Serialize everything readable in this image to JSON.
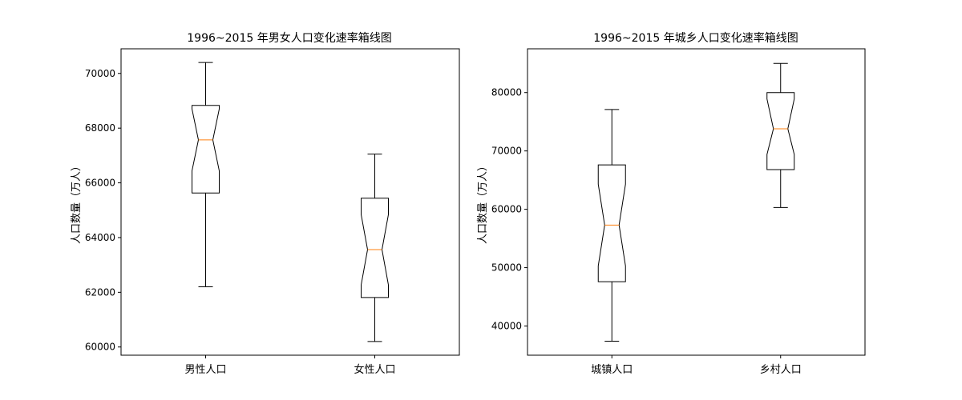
{
  "chart_data": [
    {
      "type": "boxplot",
      "title": "1996~2015 年男女人口变化速率箱线图",
      "xlabel": "",
      "ylabel": "人口数量（万人）",
      "ylim": [
        59700,
        70900
      ],
      "yticks": [
        60000,
        62000,
        64000,
        66000,
        68000,
        70000
      ],
      "notched": true,
      "median_color": "#ff7f0e",
      "box_color": "#000000",
      "categories": [
        "男性人口",
        "女性人口"
      ],
      "boxes": [
        {
          "label": "男性人口",
          "min": 62200,
          "q1": 65630,
          "median": 67570,
          "q3": 68830,
          "max": 70400,
          "notch_low": 66440,
          "notch_high": 68700
        },
        {
          "label": "女性人口",
          "min": 60200,
          "q1": 61810,
          "median": 63560,
          "q3": 65440,
          "max": 67050,
          "notch_low": 62270,
          "notch_high": 64840
        }
      ]
    },
    {
      "type": "boxplot",
      "title": "1996~2015 年城乡人口变化速率箱线图",
      "xlabel": "",
      "ylabel": "人口数量（万人）",
      "ylim": [
        35000,
        87500
      ],
      "yticks": [
        40000,
        50000,
        60000,
        70000,
        80000
      ],
      "notched": true,
      "median_color": "#ff7f0e",
      "box_color": "#000000",
      "categories": [
        "城镇人口",
        "乡村人口"
      ],
      "boxes": [
        {
          "label": "城镇人口",
          "min": 37400,
          "q1": 47600,
          "median": 57300,
          "q3": 67600,
          "max": 77100,
          "notch_low": 50300,
          "notch_high": 64300
        },
        {
          "label": "乡村人口",
          "min": 60300,
          "q1": 66800,
          "median": 73800,
          "q3": 80000,
          "max": 85000,
          "notch_low": 69400,
          "notch_high": 78900
        }
      ]
    }
  ]
}
